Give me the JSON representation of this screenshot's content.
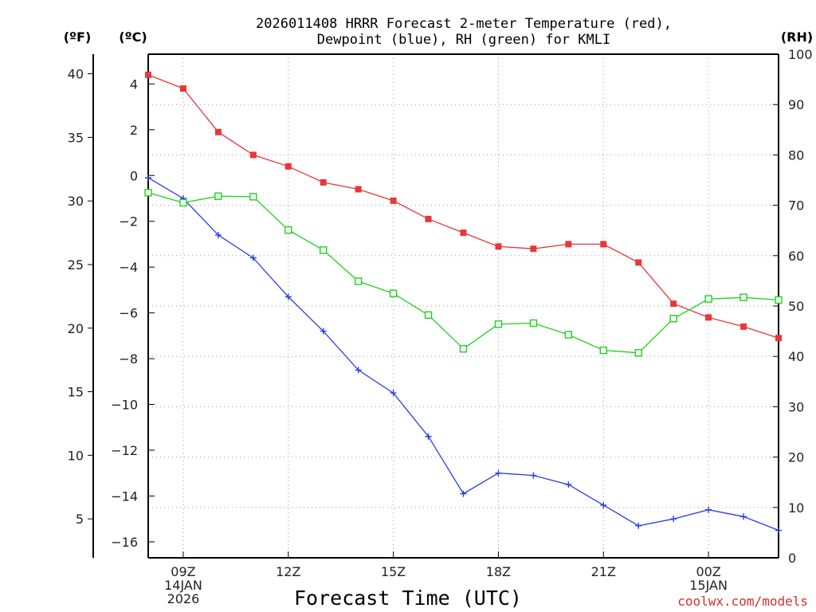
{
  "chart_data": {
    "type": "line",
    "title_lines": [
      "2026011408 HRRR Forecast 2-meter Temperature (red),",
      "Dewpoint (blue), RH (green) for KMLI"
    ],
    "xlabel": "Forecast Time (UTC)",
    "credit": "coolwx.com/models",
    "units": {
      "left_f": "(ºF)",
      "left_c": "(ºC)",
      "right_rh": "(RH)"
    },
    "x_hours": [
      8,
      9,
      10,
      11,
      12,
      13,
      14,
      15,
      16,
      17,
      18,
      19,
      20,
      21,
      22,
      23,
      24,
      25,
      26
    ],
    "xlim": [
      8,
      26
    ],
    "x_ticks": [
      {
        "hour": 9,
        "lines": [
          "09Z",
          "14JAN",
          "2026"
        ]
      },
      {
        "hour": 12,
        "lines": [
          "12Z"
        ]
      },
      {
        "hour": 15,
        "lines": [
          "15Z"
        ]
      },
      {
        "hour": 18,
        "lines": [
          "18Z"
        ]
      },
      {
        "hour": 21,
        "lines": [
          "21Z"
        ]
      },
      {
        "hour": 24,
        "lines": [
          "00Z",
          "15JAN"
        ]
      }
    ],
    "celsius_axis": {
      "ylim": [
        -16.7,
        5.3
      ],
      "ticks": [
        "4",
        "2",
        "0",
        "-2",
        "-4",
        "-6",
        "-8",
        "-10",
        "-12",
        "-14",
        "-16"
      ]
    },
    "fahrenheit_axis": {
      "ticks": [
        "40",
        "35",
        "30",
        "25",
        "20",
        "15",
        "10",
        "5"
      ]
    },
    "rh_axis": {
      "ylim": [
        0,
        100
      ],
      "ticks": [
        "100",
        "90",
        "80",
        "70",
        "60",
        "50",
        "40",
        "30",
        "20",
        "10",
        "0"
      ]
    },
    "series": [
      {
        "name": "2-meter Temperature",
        "units": "C",
        "color": "#e8363a",
        "marker": "filled-square",
        "values": [
          4.4,
          3.8,
          1.9,
          0.9,
          0.4,
          -0.3,
          -0.6,
          -1.1,
          -1.9,
          -2.5,
          -3.1,
          -3.2,
          -3.0,
          -3.0,
          -3.8,
          -5.6,
          -6.2,
          -6.6,
          -7.1
        ]
      },
      {
        "name": "Dewpoint",
        "units": "C",
        "color": "#2b3de0",
        "marker": "plus",
        "values": [
          -0.1,
          -1.0,
          -2.6,
          -3.6,
          -5.3,
          -6.8,
          -8.5,
          -9.5,
          -11.4,
          -13.9,
          -13.0,
          -13.1,
          -13.5,
          -14.4,
          -15.3,
          -15.0,
          -14.6,
          -14.9,
          -15.5
        ]
      },
      {
        "name": "Relative Humidity",
        "units": "%",
        "color": "#1fd21f",
        "marker": "open-square",
        "values": [
          72.5,
          70.5,
          71.8,
          71.7,
          65.1,
          61.1,
          54.9,
          52.5,
          48.2,
          41.5,
          46.4,
          46.6,
          44.3,
          41.2,
          40.7,
          47.5,
          51.4,
          51.7,
          51.2
        ]
      }
    ]
  }
}
